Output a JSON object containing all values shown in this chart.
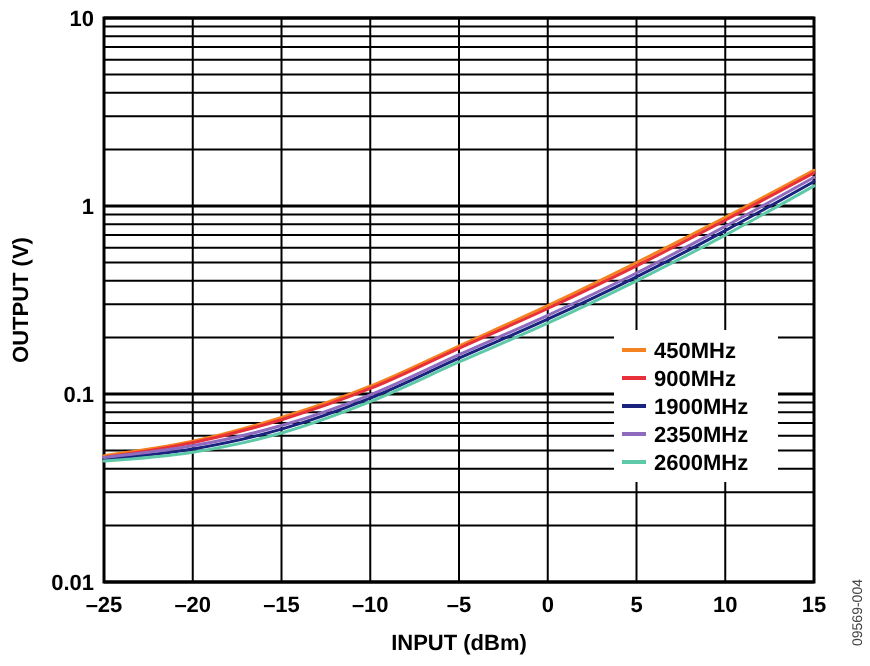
{
  "chart_data": {
    "type": "line",
    "xlabel": "INPUT (dBm)",
    "ylabel": "OUTPUT (V)",
    "log": "y",
    "grid": true,
    "legend": "right",
    "line_style": "solid",
    "marker": "none",
    "x": [
      -25,
      -20,
      -15,
      -10,
      -5,
      0,
      5,
      10,
      15
    ],
    "xlim": [
      -25,
      15
    ],
    "xticks": [
      {
        "value": -25,
        "label": "–25"
      },
      {
        "value": -20,
        "label": "–20"
      },
      {
        "value": -15,
        "label": "–15"
      },
      {
        "value": -10,
        "label": "–10"
      },
      {
        "value": -5,
        "label": "–5"
      },
      0,
      5,
      10,
      15
    ],
    "ylim": [
      0.01,
      10
    ],
    "yticks": [
      0.01,
      {
        "value": 0.02,
        "label": null
      },
      {
        "value": 0.03,
        "label": null
      },
      {
        "value": 0.04,
        "label": null
      },
      {
        "value": 0.05,
        "label": null
      },
      {
        "value": 0.06,
        "label": null
      },
      {
        "value": 0.07,
        "label": null
      },
      {
        "value": 0.08,
        "label": null
      },
      {
        "value": 0.09,
        "label": null
      },
      0.1,
      {
        "value": 0.2,
        "label": null
      },
      {
        "value": 0.3,
        "label": null
      },
      {
        "value": 0.4,
        "label": null
      },
      {
        "value": 0.5,
        "label": null
      },
      {
        "value": 0.6,
        "label": null
      },
      {
        "value": 0.7,
        "label": null
      },
      {
        "value": 0.8,
        "label": null
      },
      {
        "value": 0.9,
        "label": null
      },
      1,
      {
        "value": 2,
        "label": null
      },
      {
        "value": 3,
        "label": null
      },
      {
        "value": 4,
        "label": null
      },
      {
        "value": 5,
        "label": null
      },
      {
        "value": 6,
        "label": null
      },
      {
        "value": 7,
        "label": null
      },
      {
        "value": 8,
        "label": null
      },
      {
        "value": 9,
        "label": null
      },
      10
    ],
    "series": [
      {
        "name": "450MHz",
        "color": "#f58220",
        "values": [
          0.047,
          0.056,
          0.075,
          0.11,
          0.18,
          0.295,
          0.5,
          0.87,
          1.55
        ]
      },
      {
        "name": "900MHz",
        "color": "#e8303a",
        "values": [
          0.046,
          0.055,
          0.073,
          0.107,
          0.175,
          0.285,
          0.48,
          0.84,
          1.5
        ]
      },
      {
        "name": "1900MHz",
        "color": "#1a237e",
        "values": [
          0.045,
          0.051,
          0.065,
          0.095,
          0.155,
          0.25,
          0.42,
          0.74,
          1.35
        ]
      },
      {
        "name": "2350MHz",
        "color": "#8e6bbf",
        "values": [
          0.046,
          0.053,
          0.068,
          0.099,
          0.162,
          0.262,
          0.44,
          0.78,
          1.42
        ]
      },
      {
        "name": "2600MHz",
        "color": "#5ec9a8",
        "values": [
          0.044,
          0.049,
          0.062,
          0.091,
          0.148,
          0.238,
          0.4,
          0.7,
          1.28
        ]
      }
    ],
    "annotations": [
      "09569-004"
    ]
  }
}
